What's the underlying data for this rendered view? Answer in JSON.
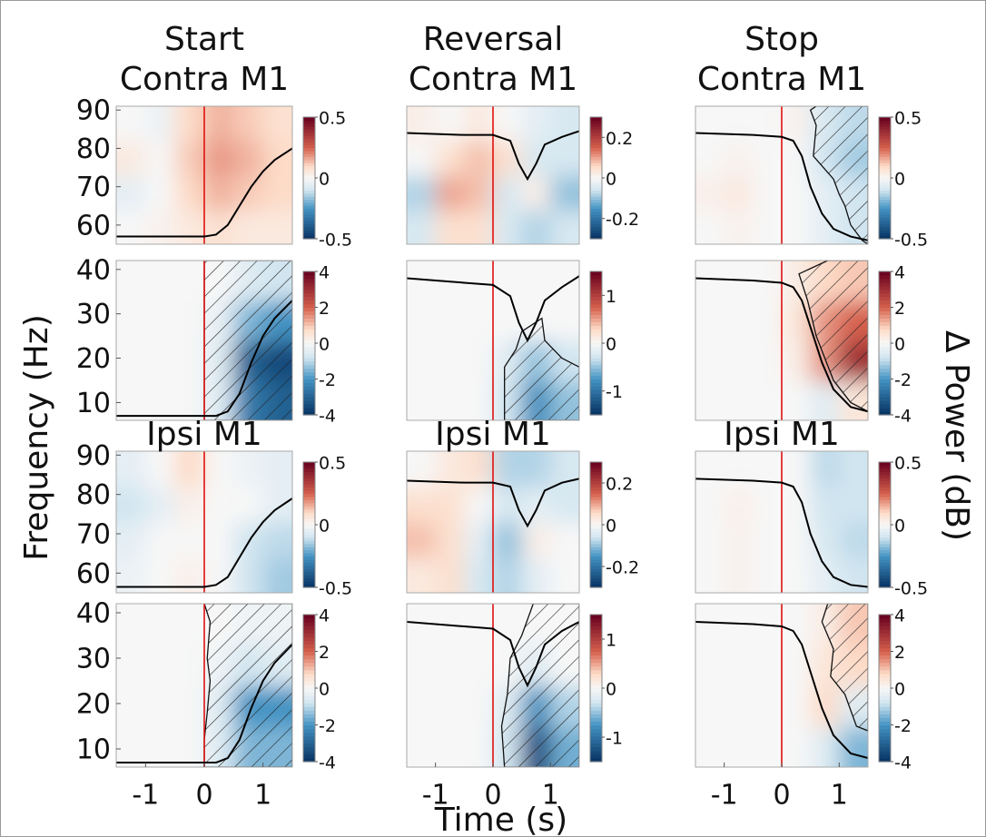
{
  "figure": {
    "x_label": "Time (s)",
    "y_label": "Frequency (Hz)",
    "colorbar_label": "Δ Power (dB)"
  },
  "chart_data": [
    {
      "type": "heatmap",
      "title": [
        "Start",
        "Contra M1"
      ],
      "xlim": [
        -1.5,
        1.5
      ],
      "ylim": [
        55,
        91
      ],
      "yticks": [
        60,
        70,
        80,
        90
      ],
      "clim": [
        -0.5,
        0.5
      ],
      "cticks": [
        -0.5,
        0,
        0.5
      ],
      "z": [
        [
          0,
          0.02,
          0.05,
          0.08,
          0.05,
          0.05
        ],
        [
          -0.05,
          0,
          0.1,
          0.15,
          0.12,
          0.1
        ],
        [
          0.05,
          0,
          0.12,
          0.18,
          0.15,
          0.1
        ],
        [
          0,
          -0.03,
          0.1,
          0.15,
          0.12,
          0.08
        ]
      ],
      "trace": {
        "x": [
          -1.5,
          0,
          0.2,
          0.4,
          0.6,
          0.8,
          1,
          1.2,
          1.5
        ],
        "y": [
          57,
          57,
          57.5,
          60,
          65,
          70,
          74,
          77,
          80
        ]
      },
      "event_x": 0
    },
    {
      "type": "heatmap",
      "xlim": [
        -1.5,
        1.5
      ],
      "ylim": [
        6,
        42
      ],
      "yticks": [
        10,
        20,
        30,
        40
      ],
      "clim": [
        -4,
        4
      ],
      "cticks": [
        -4,
        -2,
        0,
        2,
        4
      ],
      "z": [
        [
          0,
          0,
          0,
          -0.5,
          -2.5,
          -3
        ],
        [
          0,
          0,
          0,
          -0.5,
          -3,
          -3.5
        ],
        [
          0,
          0,
          0,
          -0.3,
          -1.5,
          -2
        ],
        [
          0,
          0,
          0,
          0,
          -0.5,
          -0.8
        ]
      ],
      "trace": {
        "x": [
          -1.5,
          0,
          0.2,
          0.4,
          0.6,
          0.8,
          1,
          1.2,
          1.5
        ],
        "y": [
          7,
          7,
          7,
          8,
          12,
          19,
          25,
          29,
          33
        ]
      },
      "event_x": 0,
      "region": {
        "x": [
          0,
          0,
          1.5,
          1.5
        ],
        "y": [
          6,
          42,
          42,
          6
        ]
      }
    },
    {
      "type": "heatmap",
      "title": [
        "Ipsi M1"
      ],
      "xlim": [
        -1.5,
        1.5
      ],
      "ylim": [
        55,
        91
      ],
      "yticks": [
        60,
        70,
        80,
        90
      ],
      "clim": [
        -0.5,
        0.5
      ],
      "cticks": [
        -0.5,
        0,
        0.5
      ],
      "z": [
        [
          -0.03,
          0,
          0.03,
          0,
          -0.1,
          -0.15
        ],
        [
          -0.05,
          0,
          0,
          0,
          -0.1,
          -0.12
        ],
        [
          -0.1,
          -0.05,
          0.03,
          0,
          0,
          -0.05
        ],
        [
          -0.05,
          0,
          0.1,
          0,
          -0.03,
          -0.05
        ]
      ],
      "trace": {
        "x": [
          -1.5,
          0,
          0.2,
          0.4,
          0.6,
          0.8,
          1,
          1.2,
          1.5
        ],
        "y": [
          56.5,
          56.5,
          57,
          59,
          64,
          69,
          73,
          76,
          79
        ]
      },
      "event_x": 0
    },
    {
      "type": "heatmap",
      "xlim": [
        -1.5,
        1.5
      ],
      "ylim": [
        6,
        42
      ],
      "yticks": [
        10,
        20,
        30,
        40
      ],
      "xticks": [
        -1,
        0,
        1
      ],
      "clim": [
        -4,
        4
      ],
      "cticks": [
        -4,
        -2,
        0,
        2,
        4
      ],
      "z": [
        [
          0,
          0,
          0,
          -0.5,
          -1.5,
          -1.5
        ],
        [
          0,
          0,
          0,
          -0.5,
          -2,
          -2
        ],
        [
          0,
          0,
          0,
          -0.2,
          -0.8,
          -0.5
        ],
        [
          0,
          0,
          0,
          0,
          -0.2,
          -0.2
        ]
      ],
      "trace": {
        "x": [
          -1.5,
          0,
          0.2,
          0.4,
          0.6,
          0.8,
          1,
          1.2,
          1.5
        ],
        "y": [
          7,
          7,
          7,
          8,
          12,
          19,
          25,
          29,
          33
        ]
      },
      "event_x": 0,
      "region": {
        "x": [
          0,
          0.1,
          0.05,
          0.1,
          0.05,
          0,
          0,
          1.5,
          1.5
        ],
        "y": [
          42,
          38,
          30,
          25,
          18,
          12,
          6,
          6,
          42
        ]
      }
    },
    {
      "type": "heatmap",
      "title": [
        "Reversal",
        "Contra M1"
      ],
      "xlim": [
        -1.5,
        1.5
      ],
      "ylim": [
        55,
        91
      ],
      "clim": [
        -0.3,
        0.3
      ],
      "cticks": [
        -0.2,
        0,
        0.2
      ],
      "z": [
        [
          -0.05,
          0.05,
          0.05,
          -0.05,
          -0.08,
          -0.05
        ],
        [
          -0.08,
          0.1,
          0.08,
          -0.05,
          0.02,
          -0.1
        ],
        [
          0,
          0.05,
          0.08,
          0.05,
          -0.05,
          -0.05
        ],
        [
          0.02,
          0,
          0.03,
          0,
          -0.03,
          -0.05
        ]
      ],
      "trace": {
        "x": [
          -1.5,
          -0.5,
          0,
          0.3,
          0.45,
          0.6,
          0.75,
          0.9,
          1.2,
          1.5
        ],
        "y": [
          84,
          83.5,
          83.5,
          82,
          76,
          72,
          76,
          81,
          83,
          84.5
        ]
      },
      "event_x": 0
    },
    {
      "type": "heatmap",
      "xlim": [
        -1.5,
        1.5
      ],
      "ylim": [
        6,
        42
      ],
      "clim": [
        -1.5,
        1.5
      ],
      "cticks": [
        -1,
        0,
        1
      ],
      "z": [
        [
          0,
          0,
          0,
          -0.3,
          -0.8,
          -0.5
        ],
        [
          0,
          0,
          0,
          -0.2,
          -0.5,
          -0.3
        ],
        [
          0,
          0,
          0,
          0,
          0,
          0
        ],
        [
          0,
          0,
          0,
          0,
          0,
          0
        ]
      ],
      "trace": {
        "x": [
          -1.5,
          -0.5,
          0,
          0.3,
          0.45,
          0.6,
          0.75,
          0.9,
          1.2,
          1.5
        ],
        "y": [
          38,
          37,
          36.5,
          34,
          28,
          24,
          28,
          33,
          36,
          38.5
        ]
      },
      "event_x": 0,
      "region": {
        "x": [
          0.2,
          0.2,
          0.4,
          0.5,
          0.85,
          0.9,
          1.2,
          1.5,
          1.5
        ],
        "y": [
          6,
          18,
          22,
          26,
          29,
          24,
          20,
          18,
          6
        ]
      }
    },
    {
      "type": "heatmap",
      "title": [
        "Ipsi M1"
      ],
      "xlim": [
        -1.5,
        1.5
      ],
      "ylim": [
        55,
        91
      ],
      "clim": [
        -0.3,
        0.3
      ],
      "cticks": [
        -0.2,
        0,
        0.2
      ],
      "z": [
        [
          0.03,
          0.05,
          -0.05,
          -0.08,
          -0.03,
          0
        ],
        [
          0.08,
          0.05,
          -0.03,
          -0.1,
          0.02,
          0
        ],
        [
          0.05,
          0.05,
          0,
          -0.05,
          -0.03,
          -0.05
        ],
        [
          0,
          0.03,
          0.05,
          -0.08,
          -0.08,
          -0.05
        ]
      ],
      "trace": {
        "x": [
          -1.5,
          -0.5,
          0,
          0.3,
          0.45,
          0.6,
          0.75,
          0.9,
          1.2,
          1.5
        ],
        "y": [
          83.5,
          83,
          83,
          82,
          76,
          72,
          76,
          81,
          83,
          84
        ]
      },
      "event_x": 0
    },
    {
      "type": "heatmap",
      "xlim": [
        -1.5,
        1.5
      ],
      "ylim": [
        6,
        42
      ],
      "xticks": [
        -1,
        0,
        1
      ],
      "clim": [
        -1.5,
        1.5
      ],
      "cticks": [
        -1,
        0,
        1
      ],
      "z": [
        [
          0,
          0,
          0,
          -0.3,
          -1.3,
          -0.6
        ],
        [
          0,
          0,
          0,
          -0.2,
          -0.8,
          -0.4
        ],
        [
          0,
          0,
          0,
          0,
          -0.2,
          0
        ],
        [
          0,
          0,
          0,
          0,
          0,
          0
        ]
      ],
      "trace": {
        "x": [
          -1.5,
          -0.5,
          0,
          0.3,
          0.45,
          0.6,
          0.75,
          0.9,
          1.2,
          1.5
        ],
        "y": [
          38,
          37,
          36.5,
          34,
          28,
          24,
          28,
          33,
          36,
          38
        ]
      },
      "event_x": 0,
      "region": {
        "x": [
          0.2,
          0.15,
          0.25,
          0.3,
          0.5,
          0.7,
          1.5,
          1.5
        ],
        "y": [
          6,
          15,
          22,
          30,
          35,
          42,
          42,
          6
        ]
      }
    },
    {
      "type": "heatmap",
      "title": [
        "Stop",
        "Contra M1"
      ],
      "xlim": [
        -1.5,
        1.5
      ],
      "ylim": [
        55,
        91
      ],
      "clim": [
        -0.5,
        0.5
      ],
      "cticks": [
        -0.5,
        0,
        0.5
      ],
      "z": [
        [
          0,
          0.02,
          0,
          0,
          -0.05,
          -0.1
        ],
        [
          0.03,
          0.05,
          0,
          0,
          -0.05,
          -0.1
        ],
        [
          0,
          0.02,
          0,
          0,
          -0.1,
          -0.15
        ],
        [
          0,
          0,
          0,
          0.02,
          -0.08,
          -0.12
        ]
      ],
      "trace": {
        "x": [
          -1.5,
          -0.5,
          0,
          0.2,
          0.35,
          0.5,
          0.7,
          0.9,
          1.2,
          1.5
        ],
        "y": [
          84,
          83.5,
          83,
          82,
          78,
          70,
          63,
          59,
          57,
          56
        ]
      },
      "event_x": 0,
      "region": {
        "x": [
          0.6,
          0.5,
          0.6,
          0.55,
          0.9,
          1.0,
          1.1,
          1.2,
          1.4,
          1.5,
          1.5
        ],
        "y": [
          91,
          90,
          86,
          78,
          72,
          68,
          65,
          60,
          56,
          55,
          91
        ]
      }
    },
    {
      "type": "heatmap",
      "xlim": [
        -1.5,
        1.5
      ],
      "ylim": [
        6,
        42
      ],
      "clim": [
        -4,
        4
      ],
      "cticks": [
        -4,
        -2,
        0,
        2,
        4
      ],
      "z": [
        [
          0,
          0,
          0,
          0,
          -0.5,
          0.5
        ],
        [
          0,
          0,
          0,
          0.3,
          1.5,
          3
        ],
        [
          0,
          0,
          0,
          0.5,
          1.5,
          2
        ],
        [
          0,
          0,
          0,
          0.3,
          0.8,
          1
        ]
      ],
      "trace": {
        "x": [
          -1.5,
          -0.5,
          0,
          0.2,
          0.35,
          0.5,
          0.7,
          0.9,
          1.2,
          1.5
        ],
        "y": [
          38,
          37.5,
          37,
          36,
          33,
          27,
          19,
          13,
          9,
          8
        ]
      },
      "event_x": 0,
      "region": {
        "x": [
          0.3,
          0.8,
          1.5,
          1.5,
          1.2,
          0.9,
          0.6,
          0.45
        ],
        "y": [
          39,
          42,
          42,
          8,
          10,
          15,
          25,
          33
        ]
      }
    },
    {
      "type": "heatmap",
      "title": [
        "Ipsi M1"
      ],
      "xlim": [
        -1.5,
        1.5
      ],
      "ylim": [
        55,
        91
      ],
      "clim": [
        -0.5,
        0.5
      ],
      "cticks": [
        -0.5,
        0,
        0.5
      ],
      "z": [
        [
          0,
          0.02,
          0,
          0,
          -0.05,
          -0.1
        ],
        [
          0,
          0.02,
          0,
          0,
          -0.08,
          -0.12
        ],
        [
          0,
          0.03,
          0,
          0,
          -0.1,
          -0.1
        ],
        [
          0,
          0,
          0,
          0,
          -0.12,
          -0.1
        ]
      ],
      "trace": {
        "x": [
          -1.5,
          -0.5,
          0,
          0.2,
          0.35,
          0.5,
          0.7,
          0.9,
          1.2,
          1.5
        ],
        "y": [
          84,
          83.5,
          83,
          82,
          78,
          70,
          63,
          59,
          57,
          56.5
        ]
      },
      "event_x": 0
    },
    {
      "type": "heatmap",
      "xlim": [
        -1.5,
        1.5
      ],
      "ylim": [
        6,
        42
      ],
      "xticks": [
        -1,
        0,
        1
      ],
      "clim": [
        -4,
        4
      ],
      "cticks": [
        -4,
        -2,
        0,
        2,
        4
      ],
      "z": [
        [
          0,
          0,
          0,
          0,
          -0.5,
          -1.5
        ],
        [
          0,
          0,
          0,
          0,
          0.8,
          -0.5
        ],
        [
          0,
          0,
          0,
          0,
          0.5,
          0.8
        ],
        [
          0,
          0,
          0,
          0,
          0.3,
          1
        ]
      ],
      "trace": {
        "x": [
          -1.5,
          -0.5,
          0,
          0.2,
          0.35,
          0.5,
          0.7,
          0.9,
          1.2,
          1.5
        ],
        "y": [
          38,
          37.5,
          37,
          36,
          33,
          27,
          19,
          13,
          9,
          8
        ]
      },
      "event_x": 0,
      "region": {
        "x": [
          0.8,
          0.7,
          0.9,
          0.85,
          1.1,
          1.3,
          1.5,
          1.5
        ],
        "y": [
          42,
          38,
          32,
          26,
          22,
          15,
          14,
          42
        ]
      }
    }
  ]
}
